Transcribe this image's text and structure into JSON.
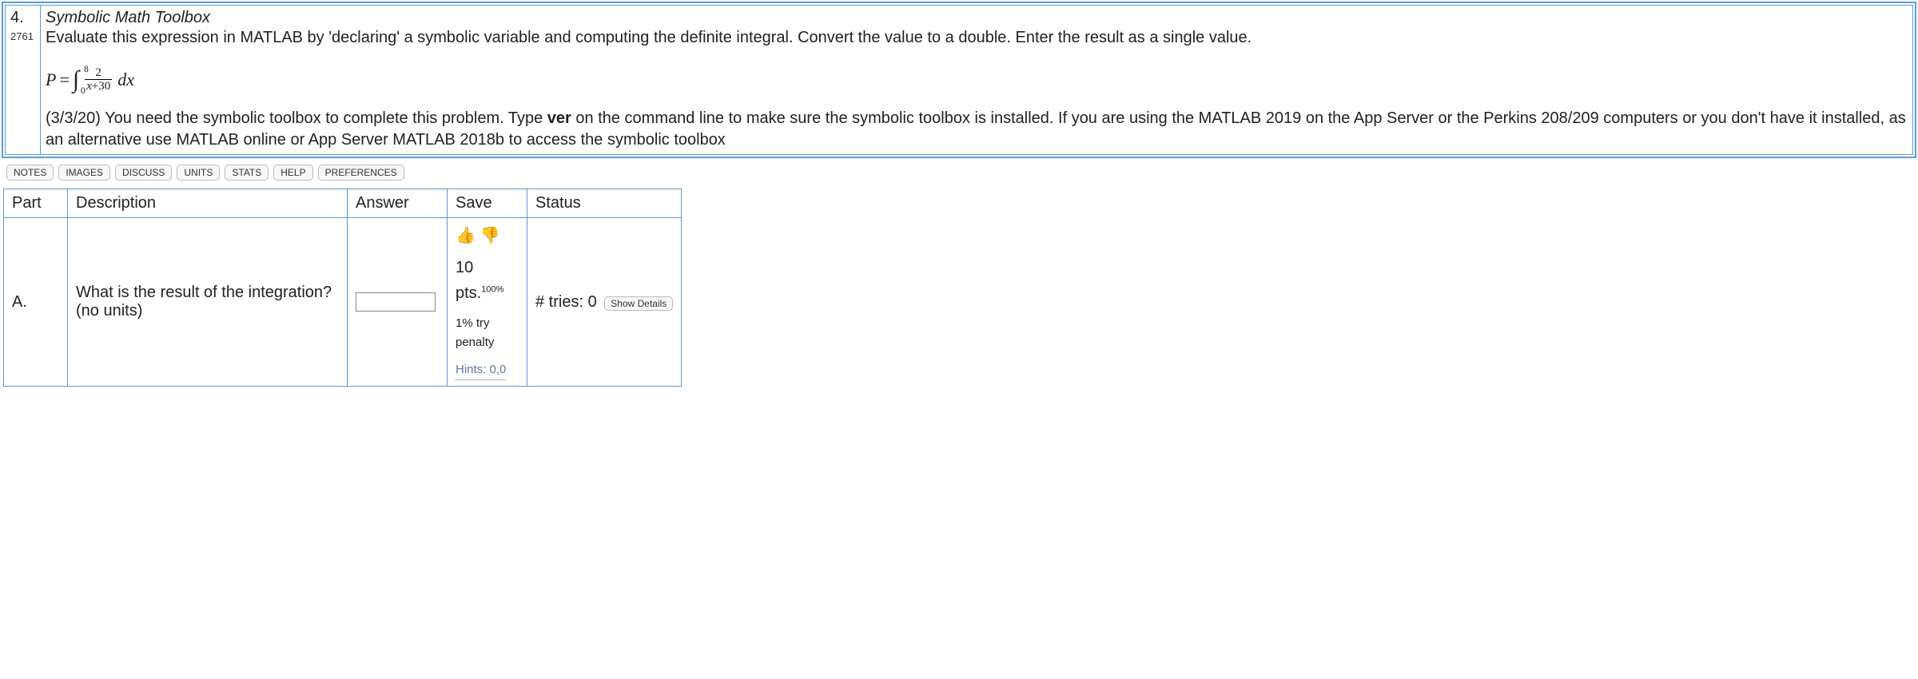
{
  "question": {
    "number": "4.",
    "id": "2761",
    "title": "Symbolic Math Toolbox",
    "prompt": "Evaluate this expression in MATLAB by 'declaring' a symbolic variable and computing the definite integral. Convert the value to a double. Enter the result as a single value.",
    "formula": {
      "lhs": "P",
      "int_lower": "0",
      "int_upper": "8",
      "frac_num": "2",
      "frac_den_left": "x",
      "frac_den_right": "30",
      "dvar": "dx"
    },
    "note_pre": "(3/3/20) You need the symbolic toolbox to complete this problem. Type ",
    "note_bold": "ver",
    "note_post": " on the command line to make sure the symbolic toolbox is installed. If you are using the MATLAB 2019 on the App Server or the Perkins 208/209 computers or you don't have it installed, as an alternative use MATLAB online or App Server MATLAB 2018b to access the symbolic toolbox"
  },
  "buttons": [
    "NOTES",
    "IMAGES",
    "DISCUSS",
    "UNITS",
    "STATS",
    "HELP",
    "PREFERENCES"
  ],
  "answer_table": {
    "headers": {
      "part": "Part",
      "description": "Description",
      "answer": "Answer",
      "save": "Save",
      "status": "Status"
    },
    "row": {
      "part": "A.",
      "description": "What is the result of the integration? (no units)",
      "answer_value": "",
      "pts_label": "10 pts.",
      "pts_pct": "100%",
      "penalty": "1% try penalty",
      "hints": "Hints: 0,0",
      "tries_label": "# tries: 0",
      "show_details": "Show Details"
    }
  },
  "colors": {
    "border": "#5b9bd5",
    "thumb_up": "#2e8b2e",
    "thumb_down": "#cc2b2b",
    "link": "#5a7aa5"
  }
}
